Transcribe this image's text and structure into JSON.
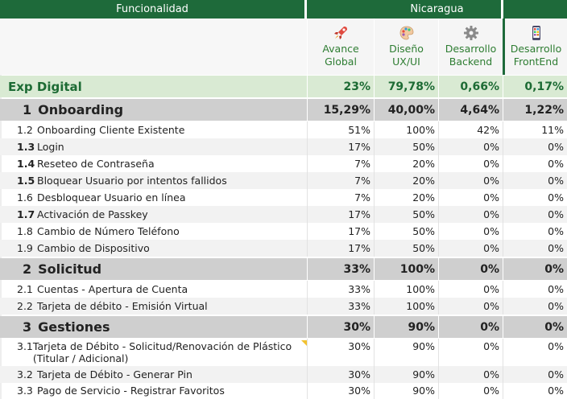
{
  "header": {
    "functionality_label": "Funcionalidad",
    "country_label": "Nicaragua"
  },
  "columns": [
    {
      "label_line1": "Avance",
      "label_line2": "Global",
      "icon": "rocket-icon"
    },
    {
      "label_line1": "Diseño",
      "label_line2": "UX/UI",
      "icon": "palette-icon"
    },
    {
      "label_line1": "Desarrollo",
      "label_line2": "Backend",
      "icon": "gear-icon"
    },
    {
      "label_line1": "Desarrollo",
      "label_line2": "FrontEnd",
      "icon": "mobile-app-icon"
    }
  ],
  "exp": {
    "label": "Exp Digital",
    "values": [
      "23%",
      "79,78%",
      "0,66%",
      "0,17%"
    ]
  },
  "sections": [
    {
      "index": "1",
      "title": "Onboarding",
      "values": [
        "15,29%",
        "40,00%",
        "4,64%",
        "1,22%"
      ],
      "rows": [
        {
          "index": "1.2",
          "title": "Onboarding Cliente Existente",
          "values": [
            "51%",
            "100%",
            "42%",
            "11%"
          ]
        },
        {
          "index": "1.3",
          "title": "Login",
          "values": [
            "17%",
            "50%",
            "0%",
            "0%"
          ]
        },
        {
          "index": "1.4",
          "title": "Reseteo de Contraseña",
          "values": [
            "7%",
            "20%",
            "0%",
            "0%"
          ]
        },
        {
          "index": "1.5",
          "title": "Bloquear Usuario por intentos fallidos",
          "values": [
            "7%",
            "20%",
            "0%",
            "0%"
          ]
        },
        {
          "index": "1.6",
          "title": "Desbloquear Usuario en línea",
          "values": [
            "7%",
            "20%",
            "0%",
            "0%"
          ]
        },
        {
          "index": "1.7",
          "title": "Activación de Passkey",
          "values": [
            "17%",
            "50%",
            "0%",
            "0%"
          ]
        },
        {
          "index": "1.8",
          "title": "Cambio de Número Teléfono",
          "values": [
            "17%",
            "50%",
            "0%",
            "0%"
          ]
        },
        {
          "index": "1.9",
          "title": "Cambio de Dispositivo",
          "values": [
            "17%",
            "50%",
            "0%",
            "0%"
          ]
        }
      ]
    },
    {
      "index": "2",
      "title": "Solicitud",
      "values": [
        "33%",
        "100%",
        "0%",
        "0%"
      ],
      "rows": [
        {
          "index": "2.1",
          "title": "Cuentas - Apertura de Cuenta",
          "values": [
            "33%",
            "100%",
            "0%",
            "0%"
          ]
        },
        {
          "index": "2.2",
          "title": "Tarjeta de débito - Emisión Virtual",
          "values": [
            "33%",
            "100%",
            "0%",
            "0%"
          ]
        }
      ]
    },
    {
      "index": "3",
      "title": "Gestiones",
      "values": [
        "30%",
        "90%",
        "0%",
        "0%"
      ],
      "rows": [
        {
          "index": "3.1",
          "title": "Tarjeta de Débito - Solicitud/Renovación de Plástico (Titular / Adicional)",
          "values": [
            "30%",
            "90%",
            "0%",
            "0%"
          ]
        },
        {
          "index": "3.2",
          "title": "Tarjeta de Débito - Generar Pin",
          "values": [
            "30%",
            "90%",
            "0%",
            "0%"
          ]
        },
        {
          "index": "3.3",
          "title": "Pago de Servicio - Registrar Favoritos",
          "values": [
            "30%",
            "90%",
            "0%",
            "0%"
          ]
        }
      ]
    }
  ]
}
